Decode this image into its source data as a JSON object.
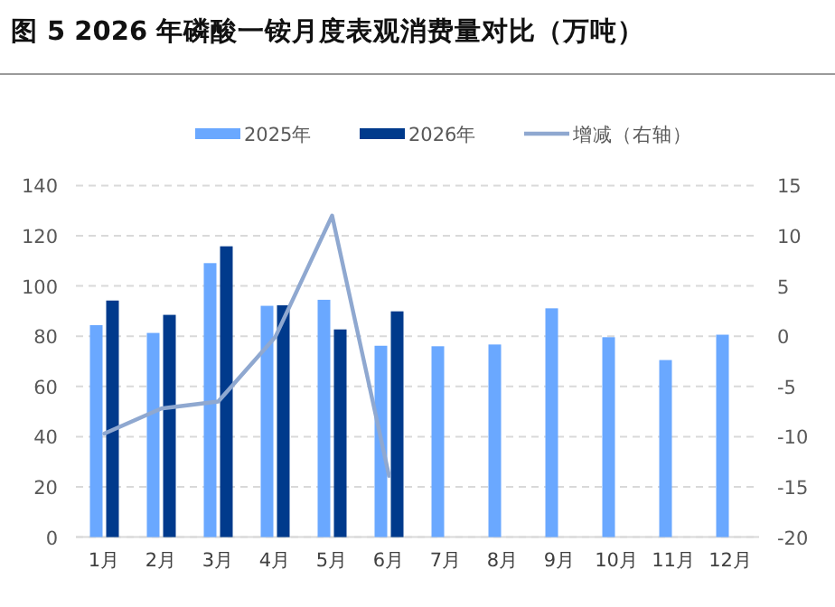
{
  "chart_data": {
    "type": "bar",
    "title": "图 5  2026 年磷酸一铵月度表观消费量对比（万吨）",
    "categories": [
      "1月",
      "2月",
      "3月",
      "4月",
      "5月",
      "6月",
      "7月",
      "8月",
      "9月",
      "10月",
      "11月",
      "12月"
    ],
    "series": [
      {
        "name": "2025年",
        "color": "#6aa8ff",
        "values": [
          84.4,
          81.3,
          109.1,
          92.1,
          94.5,
          76.2,
          76.0,
          76.7,
          91.1,
          79.6,
          70.5,
          80.6
        ]
      },
      {
        "name": "2026年",
        "color": "#003a8c",
        "values": [
          94.2,
          88.5,
          115.8,
          92.3,
          82.7,
          89.9,
          null,
          null,
          null,
          null,
          null,
          null
        ]
      },
      {
        "name": "增减（右轴）",
        "type": "line",
        "axis": "y2",
        "color": "#8fa8d0",
        "values": [
          -9.7,
          -7.2,
          -6.5,
          -0.1,
          12.0,
          -13.9,
          null,
          null,
          null,
          null,
          null,
          null
        ]
      }
    ],
    "ylim": [
      0,
      140
    ],
    "yticks": [
      0,
      20,
      40,
      60,
      80,
      100,
      120,
      140
    ],
    "y2lim": [
      -20,
      15
    ],
    "y2ticks": [
      -20,
      -15,
      -10,
      -5,
      0,
      5,
      10,
      15
    ],
    "grid": "y",
    "legend": "top",
    "marker": "none",
    "line_style": "solid"
  }
}
